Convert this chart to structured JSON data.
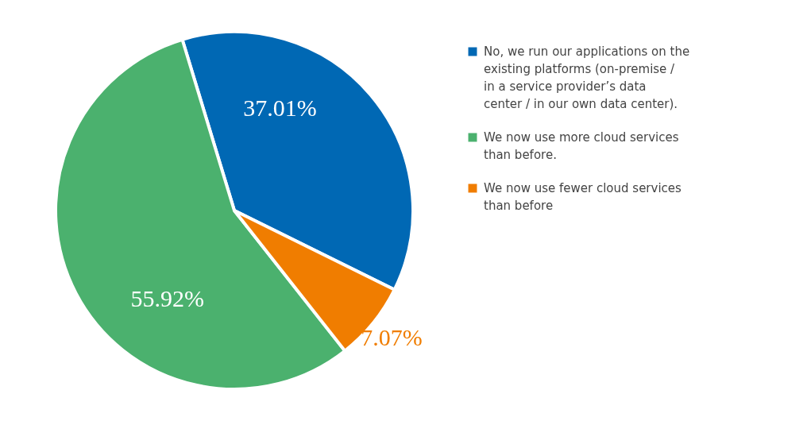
{
  "chart_data": {
    "type": "pie",
    "categories": [
      "No, we run our applications on the existing platforms (on-premise / in a service provider’s data center / in our own data center).",
      "We now use more cloud services than before.",
      "We now use fewer cloud services than before"
    ],
    "values": [
      37.01,
      55.92,
      7.07
    ],
    "colors": [
      "#0068b4",
      "#4bb16e",
      "#f07d00"
    ],
    "value_labels": [
      "37.01%",
      "55.92%",
      "7.07%"
    ],
    "legend": "right"
  }
}
